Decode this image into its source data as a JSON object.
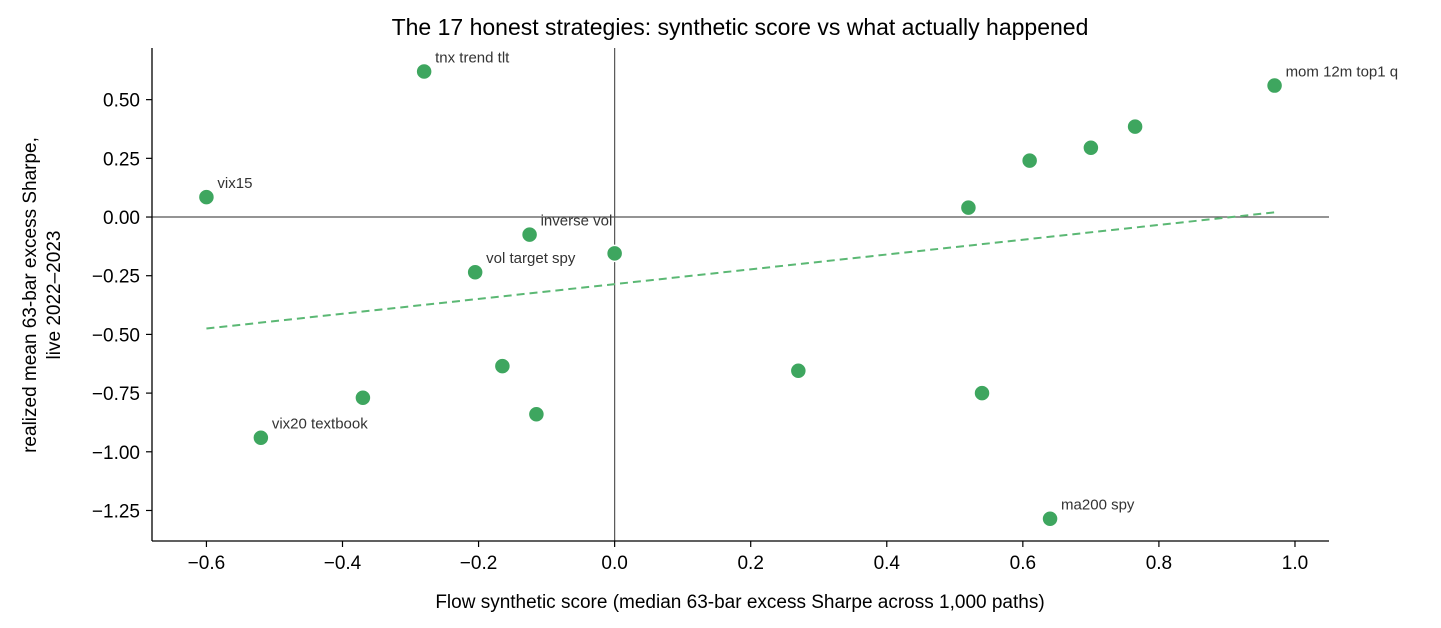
{
  "chart_data": {
    "type": "scatter",
    "title": "The 17 honest strategies: synthetic score vs what actually happened",
    "xlabel": "Flow synthetic score (median 63-bar excess Sharpe across 1,000 paths)",
    "ylabel_lines": [
      "realized mean 63-bar excess Sharpe,",
      "live 2022–2023"
    ],
    "xlim": [
      -0.68,
      1.05
    ],
    "ylim": [
      -1.38,
      0.72
    ],
    "x_ticks": [
      -0.6,
      -0.4,
      -0.2,
      0.0,
      0.2,
      0.4,
      0.6,
      0.8,
      1.0
    ],
    "x_tick_labels": [
      "−0.6",
      "−0.4",
      "−0.2",
      "0.0",
      "0.2",
      "0.4",
      "0.6",
      "0.8",
      "1.0"
    ],
    "y_ticks": [
      0.5,
      0.25,
      0.0,
      -0.25,
      -0.5,
      -0.75,
      -1.0,
      -1.25
    ],
    "y_tick_labels": [
      "0.50",
      "0.25",
      "0.00",
      "−0.25",
      "−0.50",
      "−0.75",
      "−1.00",
      "−1.25"
    ],
    "reference_lines": {
      "x": 0.0,
      "y": 0.0,
      "color": "#555555"
    },
    "point_color": "#3ea65f",
    "points": [
      {
        "x": -0.28,
        "y": 0.62,
        "label": "tnx trend tlt"
      },
      {
        "x": 0.97,
        "y": 0.56,
        "label": "mom 12m top1 q"
      },
      {
        "x": -0.6,
        "y": 0.085,
        "label": "vix15"
      },
      {
        "x": -0.125,
        "y": -0.075,
        "label": "inverse vol"
      },
      {
        "x": -0.205,
        "y": -0.235,
        "label": "vol target spy"
      },
      {
        "x": -0.52,
        "y": -0.94,
        "label": "vix20 textbook"
      },
      {
        "x": 0.64,
        "y": -1.285,
        "label": "ma200 spy"
      },
      {
        "x": 0.0,
        "y": -0.155,
        "label": ""
      },
      {
        "x": 0.52,
        "y": 0.04,
        "label": ""
      },
      {
        "x": 0.61,
        "y": 0.24,
        "label": ""
      },
      {
        "x": 0.7,
        "y": 0.295,
        "label": ""
      },
      {
        "x": 0.765,
        "y": 0.385,
        "label": ""
      },
      {
        "x": -0.165,
        "y": -0.635,
        "label": ""
      },
      {
        "x": -0.37,
        "y": -0.77,
        "label": ""
      },
      {
        "x": -0.115,
        "y": -0.84,
        "label": ""
      },
      {
        "x": 0.27,
        "y": -0.655,
        "label": ""
      },
      {
        "x": 0.54,
        "y": -0.75,
        "label": ""
      }
    ],
    "trendline": {
      "x": [
        -0.6,
        0.97
      ],
      "y": [
        -0.475,
        0.02
      ],
      "color": "#5bb874",
      "style": "dashed"
    },
    "grid": false,
    "legend": "none"
  }
}
